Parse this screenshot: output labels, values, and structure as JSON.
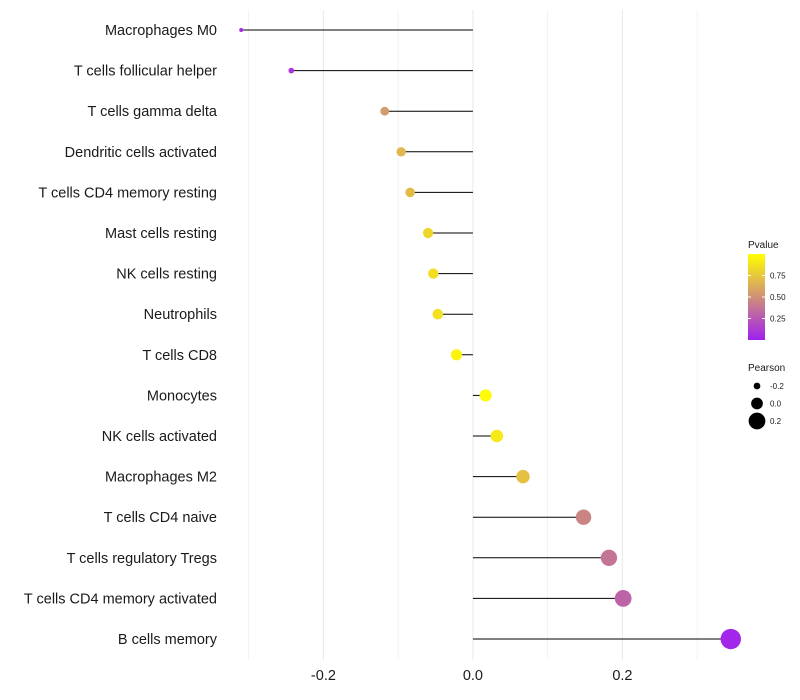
{
  "chart_data": {
    "type": "lollipop",
    "categories": [
      "Macrophages M0",
      "T cells follicular helper",
      "T cells gamma delta",
      "Dendritic cells activated",
      "T cells CD4 memory resting",
      "Mast cells resting",
      "NK cells resting",
      "Neutrophils",
      "T cells CD8",
      "Monocytes",
      "NK cells activated",
      "Macrophages M2",
      "T cells CD4 naive",
      "T cells regulatory  Tregs ",
      "T cells CD4 memory activated",
      "B cells memory"
    ],
    "values": [
      -0.31,
      -0.243,
      -0.118,
      -0.096,
      -0.084,
      -0.06,
      -0.053,
      -0.047,
      -0.022,
      0.017,
      0.032,
      0.067,
      0.148,
      0.182,
      0.201,
      0.345
    ],
    "pvalues": [
      0.05,
      0.1,
      0.55,
      0.68,
      0.7,
      0.82,
      0.85,
      0.86,
      0.95,
      0.98,
      0.9,
      0.72,
      0.45,
      0.38,
      0.3,
      0.03
    ],
    "xticks": [
      -0.2,
      0.0,
      0.2
    ],
    "xtick_labels": [
      "-0.2",
      "0.0",
      "0.2"
    ],
    "xlim": [
      -0.325,
      0.36
    ],
    "xlabel": "",
    "ylabel": "",
    "legend_color": {
      "title": "Pvalue",
      "ticks": [
        0.75,
        0.5,
        0.25
      ],
      "tick_labels": [
        "0.75",
        "0.50",
        "0.25"
      ],
      "range": [
        0.0,
        1.0
      ],
      "low_color": "#a020f0",
      "high_color": "#ffff00"
    },
    "legend_size": {
      "title": "Pearson",
      "values": [
        -0.2,
        0.0,
        0.2
      ],
      "labels": [
        "-0.2",
        "0.0",
        "0.2"
      ]
    },
    "colors": {
      "line": "#000000",
      "grid": "#ebebeb"
    }
  }
}
